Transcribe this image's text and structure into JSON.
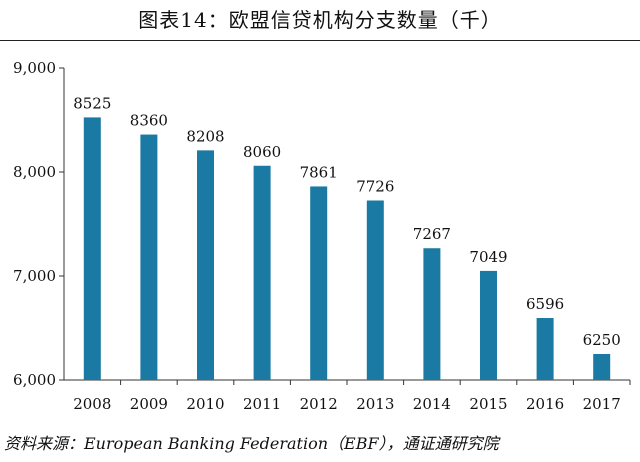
{
  "title": "图表14：欧盟信贷机构分支数量（千）",
  "source": "资料来源：European Banking Federation（EBF），通证通研究院",
  "colors": {
    "bar": "#1a7aa3",
    "axis": "#333333",
    "text": "#111111"
  },
  "chart_data": {
    "type": "bar",
    "title": "图表14：欧盟信贷机构分支数量（千）",
    "xlabel": "",
    "ylabel": "",
    "categories": [
      "2008",
      "2009",
      "2010",
      "2011",
      "2012",
      "2013",
      "2014",
      "2015",
      "2016",
      "2017"
    ],
    "values": [
      8525,
      8360,
      8208,
      8060,
      7861,
      7726,
      7267,
      7049,
      6596,
      6250
    ],
    "data_labels": [
      "8525",
      "8360",
      "8208",
      "8060",
      "7861",
      "7726",
      "7267",
      "7049",
      "6596",
      "6250"
    ],
    "ylim": [
      6000,
      9000
    ],
    "yticks": [
      6000,
      7000,
      8000,
      9000
    ],
    "ytick_labels": [
      "6,000",
      "7,000",
      "8,000",
      "9,000"
    ],
    "grid": false,
    "legend": "none"
  }
}
